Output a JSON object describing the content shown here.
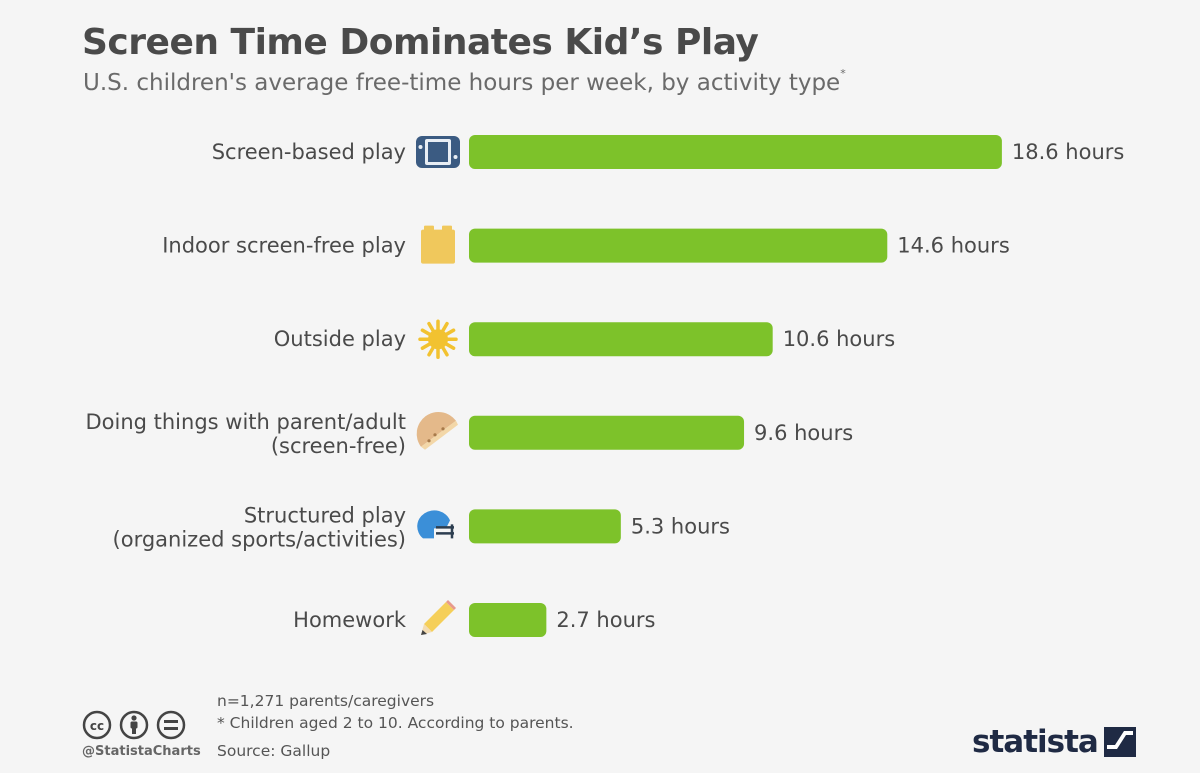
{
  "header": {
    "title": "Screen Time Dominates Kid’s Play",
    "subtitle": "U.S. children's average free-time hours per week, by activity type",
    "subtitle_marker": "*"
  },
  "chart_data": {
    "type": "bar",
    "orientation": "horizontal",
    "title": "Screen Time Dominates Kid’s Play",
    "subtitle": "U.S. children's average free-time hours per week, by activity type*",
    "categories": [
      [
        "Screen-based play"
      ],
      [
        "Indoor screen-free play"
      ],
      [
        "Outside play"
      ],
      [
        "Doing things with parent/adult",
        "(screen-free)"
      ],
      [
        "Structured play",
        "(organized sports/activities)"
      ],
      [
        "Homework"
      ]
    ],
    "values": [
      18.6,
      14.6,
      10.6,
      9.6,
      5.3,
      2.7
    ],
    "value_labels": [
      "18.6 hours",
      "14.6 hours",
      "10.6 hours",
      "9.6 hours",
      "5.3 hours",
      "2.7 hours"
    ],
    "icons": [
      "game-controller-icon",
      "toy-block-icon",
      "sun-icon",
      "taco-icon",
      "football-helmet-icon",
      "pencil-icon"
    ],
    "unit": "hours",
    "bar_color": "#7dc22a",
    "grid": false,
    "legend": "none"
  },
  "footer": {
    "n_note": "n=1,271 parents/caregivers",
    "note": "* Children aged 2 to 10. According to parents.",
    "source": "Source: Gallup",
    "handle": "@StatistaCharts",
    "brand": "statista",
    "license_icons": [
      "cc-icon",
      "by-icon",
      "nd-icon"
    ]
  }
}
